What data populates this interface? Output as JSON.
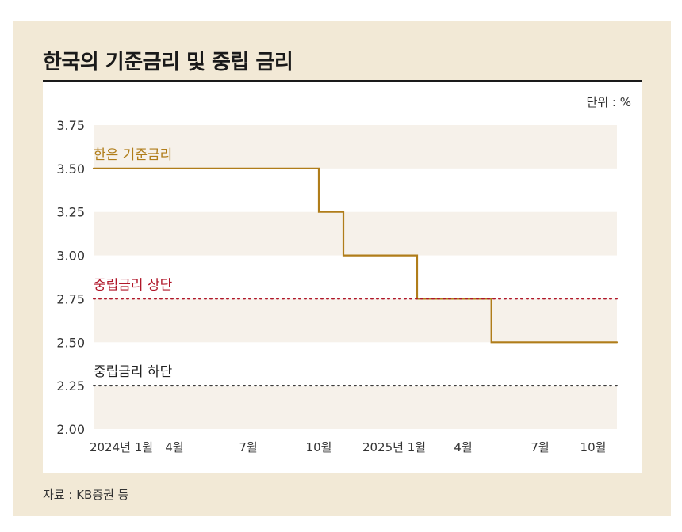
{
  "title": "한국의 기준금리 및 중립 금리",
  "unit_label": "단위 : %",
  "source": "자료 : KB증권 등",
  "colors": {
    "background_panel": "#f2e9d6",
    "band": "#f6f1ea",
    "base_rate": "#b07d1a",
    "neutral_upper": "#b0172a",
    "neutral_lower": "#222222",
    "axis_text": "#333333"
  },
  "chart_data": {
    "type": "line",
    "step": true,
    "ylim": [
      2.0,
      3.75
    ],
    "yticks": [
      "3.75",
      "3.50",
      "3.25",
      "3.00",
      "2.75",
      "2.50",
      "2.25",
      "2.00"
    ],
    "ytick_values": [
      3.75,
      3.5,
      3.25,
      3.0,
      2.75,
      2.5,
      2.25,
      2.0
    ],
    "x_tick_labels": [
      {
        "label": "2024년 1월",
        "month": 0
      },
      {
        "label": "4월",
        "month": 3
      },
      {
        "label": "7월",
        "month": 6
      },
      {
        "label": "10월",
        "month": 9
      },
      {
        "label": "2025년 1월",
        "month": 12
      },
      {
        "label": "4월",
        "month": 15
      },
      {
        "label": "7월",
        "month": 18
      },
      {
        "label": "10월",
        "month": 21
      }
    ],
    "series": [
      {
        "name": "한은 기준금리",
        "style": "solid",
        "points": [
          {
            "x": "2024-01",
            "y": 3.5
          },
          {
            "x": "2024-10",
            "y": 3.5
          },
          {
            "x": "2024-10",
            "y": 3.25
          },
          {
            "x": "2024-11",
            "y": 3.25
          },
          {
            "x": "2024-11",
            "y": 3.0
          },
          {
            "x": "2025-02",
            "y": 3.0
          },
          {
            "x": "2025-02",
            "y": 2.75
          },
          {
            "x": "2025-05",
            "y": 2.75
          },
          {
            "x": "2025-05",
            "y": 2.5
          },
          {
            "x": "2025-10",
            "y": 2.5
          }
        ]
      },
      {
        "name": "중립금리 상단",
        "style": "dotted",
        "points": [
          {
            "x": "2024-01",
            "y": 2.75
          },
          {
            "x": "2025-10",
            "y": 2.75
          }
        ]
      },
      {
        "name": "중립금리 하단",
        "style": "dotted",
        "points": [
          {
            "x": "2024-01",
            "y": 2.25
          },
          {
            "x": "2025-10",
            "y": 2.25
          }
        ]
      }
    ],
    "grid": "alternating horizontal bands",
    "legend": "inline labels above each series"
  }
}
